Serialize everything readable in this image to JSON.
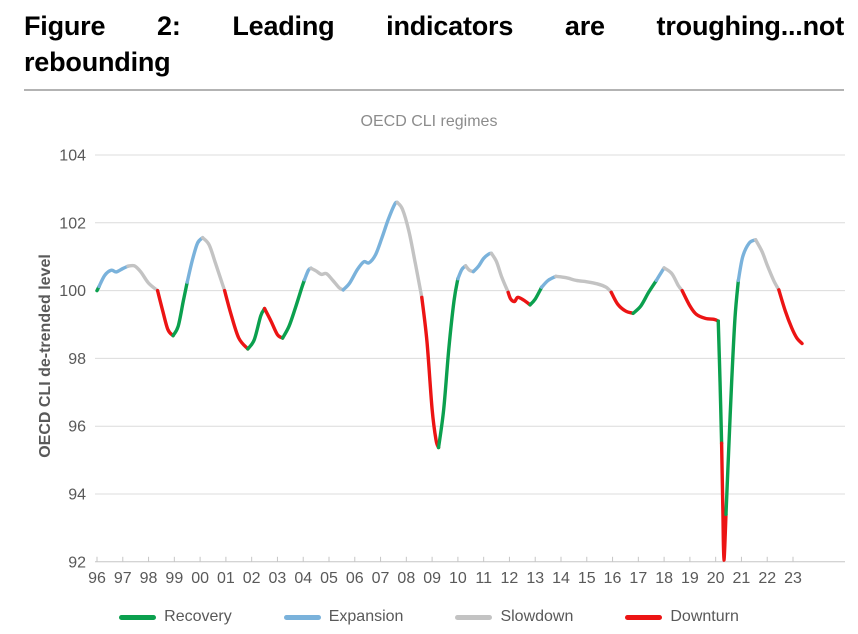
{
  "figure": {
    "title": "Figure 2: Leading indicators are troughing...not rebounding",
    "title_lines": [
      "Figure 2: Leading indicators are troughing...not",
      "rebounding"
    ]
  },
  "chart_data": {
    "type": "line",
    "title": "OECD CLI regimes",
    "xlabel": "",
    "ylabel": "OECD CLI de-trended level",
    "ylim": [
      92,
      104
    ],
    "yticks": [
      104,
      102,
      100,
      98,
      96,
      94,
      92
    ],
    "xticks": [
      "96",
      "97",
      "98",
      "99",
      "00",
      "01",
      "02",
      "03",
      "04",
      "05",
      "06",
      "07",
      "08",
      "09",
      "10",
      "11",
      "12",
      "13",
      "14",
      "15",
      "16",
      "17",
      "18",
      "19",
      "20",
      "21",
      "22",
      "23"
    ],
    "x_start_year": 1996,
    "grid": true,
    "legend_position": "bottom",
    "regimes": [
      {
        "key": "recovery",
        "label": "Recovery",
        "color": "#0BA04E"
      },
      {
        "key": "expansion",
        "label": "Expansion",
        "color": "#7AB2DB"
      },
      {
        "key": "slowdown",
        "label": "Slowdown",
        "color": "#C3C3C3"
      },
      {
        "key": "downturn",
        "label": "Downturn",
        "color": "#EC1414"
      }
    ],
    "segments": [
      {
        "regime": "recovery",
        "points": [
          [
            1996.0,
            100.0
          ],
          [
            1996.08,
            100.12
          ]
        ]
      },
      {
        "regime": "expansion",
        "points": [
          [
            1996.08,
            100.12
          ],
          [
            1996.3,
            100.45
          ],
          [
            1996.55,
            100.6
          ],
          [
            1996.75,
            100.55
          ],
          [
            1997.0,
            100.65
          ],
          [
            1997.2,
            100.72
          ]
        ]
      },
      {
        "regime": "slowdown",
        "points": [
          [
            1997.2,
            100.72
          ],
          [
            1997.45,
            100.73
          ],
          [
            1997.7,
            100.55
          ],
          [
            1998.0,
            100.22
          ],
          [
            1998.35,
            100.0
          ]
        ]
      },
      {
        "regime": "downturn",
        "points": [
          [
            1998.35,
            100.0
          ],
          [
            1998.55,
            99.4
          ],
          [
            1998.75,
            98.85
          ],
          [
            1998.95,
            98.67
          ]
        ]
      },
      {
        "regime": "recovery",
        "points": [
          [
            1998.95,
            98.67
          ],
          [
            1999.15,
            98.95
          ],
          [
            1999.35,
            99.7
          ],
          [
            1999.5,
            100.25
          ]
        ]
      },
      {
        "regime": "expansion",
        "points": [
          [
            1999.5,
            100.25
          ],
          [
            1999.7,
            100.9
          ],
          [
            1999.9,
            101.4
          ],
          [
            2000.1,
            101.56
          ]
        ]
      },
      {
        "regime": "slowdown",
        "points": [
          [
            2000.1,
            101.56
          ],
          [
            2000.35,
            101.35
          ],
          [
            2000.6,
            100.8
          ],
          [
            2000.95,
            100.0
          ]
        ]
      },
      {
        "regime": "downturn",
        "points": [
          [
            2000.95,
            100.0
          ],
          [
            2001.2,
            99.3
          ],
          [
            2001.5,
            98.6
          ],
          [
            2001.85,
            98.28
          ]
        ]
      },
      {
        "regime": "recovery",
        "points": [
          [
            2001.85,
            98.28
          ],
          [
            2002.1,
            98.55
          ],
          [
            2002.35,
            99.25
          ],
          [
            2002.5,
            99.47
          ]
        ]
      },
      {
        "regime": "downturn",
        "points": [
          [
            2002.5,
            99.47
          ],
          [
            2002.75,
            99.1
          ],
          [
            2003.0,
            98.7
          ],
          [
            2003.2,
            98.6
          ]
        ]
      },
      {
        "regime": "recovery",
        "points": [
          [
            2003.2,
            98.6
          ],
          [
            2003.45,
            98.95
          ],
          [
            2003.7,
            99.5
          ],
          [
            2003.95,
            100.1
          ],
          [
            2004.05,
            100.32
          ]
        ]
      },
      {
        "regime": "expansion",
        "points": [
          [
            2004.05,
            100.32
          ],
          [
            2004.2,
            100.6
          ],
          [
            2004.3,
            100.66
          ]
        ]
      },
      {
        "regime": "slowdown",
        "points": [
          [
            2004.3,
            100.66
          ],
          [
            2004.5,
            100.58
          ],
          [
            2004.7,
            100.48
          ],
          [
            2004.9,
            100.5
          ],
          [
            2005.15,
            100.3
          ],
          [
            2005.4,
            100.08
          ],
          [
            2005.55,
            100.02
          ]
        ]
      },
      {
        "regime": "expansion",
        "points": [
          [
            2005.55,
            100.02
          ],
          [
            2005.8,
            100.22
          ],
          [
            2006.1,
            100.62
          ],
          [
            2006.35,
            100.85
          ],
          [
            2006.55,
            100.82
          ],
          [
            2006.8,
            101.05
          ],
          [
            2007.05,
            101.55
          ],
          [
            2007.3,
            102.1
          ],
          [
            2007.55,
            102.55
          ],
          [
            2007.65,
            102.6
          ]
        ]
      },
      {
        "regime": "slowdown",
        "points": [
          [
            2007.65,
            102.6
          ],
          [
            2007.85,
            102.4
          ],
          [
            2008.1,
            101.75
          ],
          [
            2008.35,
            100.8
          ],
          [
            2008.6,
            99.8
          ]
        ]
      },
      {
        "regime": "downturn",
        "points": [
          [
            2008.6,
            99.8
          ],
          [
            2008.8,
            98.5
          ],
          [
            2009.0,
            96.5
          ],
          [
            2009.15,
            95.6
          ],
          [
            2009.25,
            95.37
          ]
        ]
      },
      {
        "regime": "recovery",
        "points": [
          [
            2009.25,
            95.37
          ],
          [
            2009.45,
            96.5
          ],
          [
            2009.65,
            98.3
          ],
          [
            2009.85,
            99.7
          ],
          [
            2010.0,
            100.35
          ]
        ]
      },
      {
        "regime": "expansion",
        "points": [
          [
            2010.0,
            100.35
          ],
          [
            2010.15,
            100.62
          ],
          [
            2010.3,
            100.73
          ]
        ]
      },
      {
        "regime": "slowdown",
        "points": [
          [
            2010.3,
            100.73
          ],
          [
            2010.45,
            100.6
          ],
          [
            2010.6,
            100.56
          ]
        ]
      },
      {
        "regime": "expansion",
        "points": [
          [
            2010.6,
            100.56
          ],
          [
            2010.8,
            100.72
          ],
          [
            2011.0,
            100.95
          ],
          [
            2011.2,
            101.08
          ],
          [
            2011.3,
            101.1
          ]
        ]
      },
      {
        "regime": "slowdown",
        "points": [
          [
            2011.3,
            101.1
          ],
          [
            2011.5,
            100.85
          ],
          [
            2011.7,
            100.4
          ],
          [
            2011.95,
            99.95
          ]
        ]
      },
      {
        "regime": "downturn",
        "points": [
          [
            2011.95,
            99.95
          ],
          [
            2012.05,
            99.75
          ],
          [
            2012.2,
            99.68
          ],
          [
            2012.32,
            99.8
          ],
          [
            2012.55,
            99.72
          ],
          [
            2012.8,
            99.58
          ]
        ]
      },
      {
        "regime": "recovery",
        "points": [
          [
            2012.8,
            99.58
          ],
          [
            2013.0,
            99.75
          ],
          [
            2013.25,
            100.1
          ]
        ]
      },
      {
        "regime": "expansion",
        "points": [
          [
            2013.25,
            100.1
          ],
          [
            2013.5,
            100.3
          ],
          [
            2013.8,
            100.42
          ]
        ]
      },
      {
        "regime": "slowdown",
        "points": [
          [
            2013.8,
            100.42
          ],
          [
            2014.2,
            100.38
          ],
          [
            2014.6,
            100.3
          ],
          [
            2015.0,
            100.26
          ],
          [
            2015.4,
            100.2
          ],
          [
            2015.75,
            100.1
          ],
          [
            2015.95,
            99.95
          ]
        ]
      },
      {
        "regime": "downturn",
        "points": [
          [
            2015.95,
            99.95
          ],
          [
            2016.2,
            99.6
          ],
          [
            2016.5,
            99.4
          ],
          [
            2016.8,
            99.33
          ]
        ]
      },
      {
        "regime": "recovery",
        "points": [
          [
            2016.8,
            99.33
          ],
          [
            2017.1,
            99.55
          ],
          [
            2017.4,
            99.95
          ],
          [
            2017.7,
            100.3
          ]
        ]
      },
      {
        "regime": "expansion",
        "points": [
          [
            2017.7,
            100.3
          ],
          [
            2017.9,
            100.55
          ],
          [
            2018.0,
            100.67
          ]
        ]
      },
      {
        "regime": "slowdown",
        "points": [
          [
            2018.0,
            100.67
          ],
          [
            2018.3,
            100.5
          ],
          [
            2018.55,
            100.15
          ],
          [
            2018.7,
            100.0
          ]
        ]
      },
      {
        "regime": "downturn",
        "points": [
          [
            2018.7,
            100.0
          ],
          [
            2019.0,
            99.55
          ],
          [
            2019.25,
            99.3
          ],
          [
            2019.6,
            99.18
          ],
          [
            2019.95,
            99.15
          ],
          [
            2020.1,
            99.1
          ]
        ]
      },
      {
        "regime": "recovery",
        "points": [
          [
            2020.1,
            99.1
          ],
          [
            2020.17,
            97.3
          ],
          [
            2020.23,
            95.5
          ]
        ]
      },
      {
        "regime": "downturn",
        "points": [
          [
            2020.23,
            95.5
          ],
          [
            2020.28,
            93.5
          ],
          [
            2020.32,
            92.05
          ],
          [
            2020.4,
            93.4
          ]
        ]
      },
      {
        "regime": "recovery",
        "points": [
          [
            2020.4,
            93.4
          ],
          [
            2020.5,
            95.2
          ],
          [
            2020.62,
            97.3
          ],
          [
            2020.75,
            99.2
          ],
          [
            2020.88,
            100.3
          ]
        ]
      },
      {
        "regime": "expansion",
        "points": [
          [
            2020.88,
            100.3
          ],
          [
            2021.05,
            101.0
          ],
          [
            2021.3,
            101.4
          ],
          [
            2021.55,
            101.5
          ]
        ]
      },
      {
        "regime": "slowdown",
        "points": [
          [
            2021.55,
            101.5
          ],
          [
            2021.8,
            101.15
          ],
          [
            2022.0,
            100.75
          ],
          [
            2022.25,
            100.3
          ],
          [
            2022.45,
            100.02
          ]
        ]
      },
      {
        "regime": "downturn",
        "points": [
          [
            2022.45,
            100.02
          ],
          [
            2022.7,
            99.4
          ],
          [
            2022.95,
            98.9
          ],
          [
            2023.15,
            98.6
          ],
          [
            2023.35,
            98.44
          ]
        ]
      }
    ]
  }
}
